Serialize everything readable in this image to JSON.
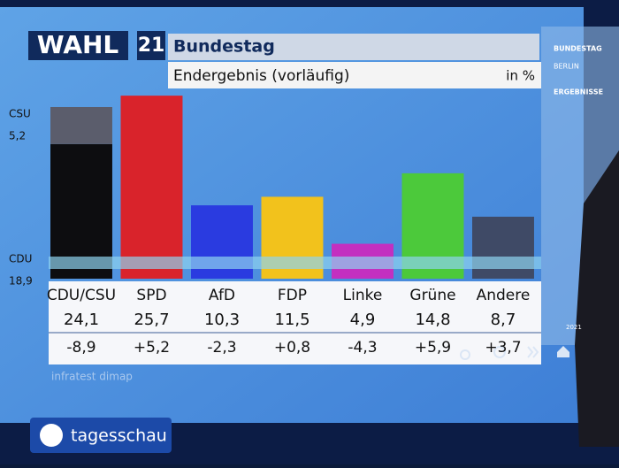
{
  "chart_data": {
    "type": "bar",
    "brand": "WAHL",
    "brand_number": "21",
    "title": "Bundestag",
    "subtitle": "Endergebnis (vorläufig)",
    "unit_label": "in %",
    "categories": [
      "CDU/CSU",
      "SPD",
      "AfD",
      "FDP",
      "Linke",
      "Grüne",
      "Andere"
    ],
    "values": [
      24.1,
      25.7,
      10.3,
      11.5,
      4.9,
      14.8,
      8.7
    ],
    "value_labels": [
      "24,1",
      "25,7",
      "10,3",
      "11,5",
      "4,9",
      "14,8",
      "8,7"
    ],
    "colors": [
      "#111111",
      "#d9232b",
      "#2a3be0",
      "#f2c21c",
      "#c32fc0",
      "#4cc93b",
      "#3f4a66"
    ],
    "changes": [
      -8.9,
      5.2,
      -2.3,
      0.8,
      -4.3,
      5.9,
      3.7
    ],
    "change_labels": [
      "-8,9",
      "+5,2",
      "-2,3",
      "+0,8",
      "-4,3",
      "+5,9",
      "+3,7"
    ],
    "stack": [
      {
        "name": "CDU",
        "value": 18.9,
        "value_label": "18,9",
        "color": "#0d0d10"
      },
      {
        "name": "CSU",
        "value": 5.2,
        "value_label": "5,2",
        "color": "#5b5d6c"
      }
    ],
    "source": "infratest dimap",
    "sidebar": [
      "BUNDESTAG",
      "BERLIN",
      "ERGEBNISSE",
      "2021"
    ],
    "footer": "tagesschau"
  }
}
